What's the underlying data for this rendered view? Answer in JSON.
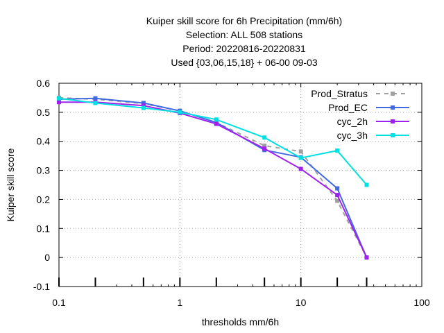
{
  "chart_data": {
    "type": "line",
    "title_lines": [
      "Kuiper skill score  for 6h Precipitation (mm/6h)",
      "Selection: ALL    508 stations",
      "Period: 20220816-20220831",
      "Used {03,06,15,18} + 06-00 09-03"
    ],
    "xlabel": "thresholds mm/6h",
    "ylabel": "Kuiper skill score",
    "x_scale": "log",
    "xlim": [
      0.1,
      100
    ],
    "ylim": [
      -0.1,
      0.6
    ],
    "x_ticks": [
      0.1,
      1,
      10,
      100
    ],
    "x_tick_labels": [
      "0.1",
      "1",
      "10",
      "100"
    ],
    "y_ticks": [
      -0.1,
      0,
      0.1,
      0.2,
      0.3,
      0.4,
      0.5,
      0.6
    ],
    "y_tick_labels": [
      "-0.1",
      "0",
      "0.1",
      "0.2",
      "0.3",
      "0.4",
      "0.5",
      "0.6"
    ],
    "grid": true,
    "legend_position": "top-right",
    "threshold_markers": [
      0.1,
      0.2,
      0.5,
      1,
      2,
      5,
      10,
      20,
      35
    ],
    "series": [
      {
        "name": "Prod_Stratus",
        "color": "#a0a0a0",
        "dashed": true,
        "x": [
          0.1,
          0.2,
          0.5,
          1,
          2,
          5,
          10,
          20,
          35
        ],
        "y": [
          0.55,
          0.545,
          0.53,
          0.505,
          0.465,
          0.385,
          0.365,
          0.195,
          0.0
        ]
      },
      {
        "name": "Prod_EC",
        "color": "#4169e1",
        "dashed": false,
        "x": [
          0.1,
          0.2,
          0.5,
          1,
          2,
          5,
          10,
          20,
          35
        ],
        "y": [
          0.545,
          0.548,
          0.532,
          0.505,
          0.465,
          0.37,
          0.345,
          0.238,
          0.0
        ]
      },
      {
        "name": "cyc_2h",
        "color": "#a020f0",
        "dashed": false,
        "x": [
          0.1,
          0.2,
          0.5,
          1,
          2,
          5,
          10,
          20,
          35
        ],
        "y": [
          0.535,
          0.535,
          0.523,
          0.497,
          0.46,
          0.375,
          0.305,
          0.215,
          0.0
        ]
      },
      {
        "name": "cyc_3h",
        "color": "#00e0e0",
        "dashed": false,
        "x": [
          0.1,
          0.2,
          0.5,
          1,
          2,
          5,
          10,
          20,
          35
        ],
        "y": [
          0.548,
          0.532,
          0.515,
          0.5,
          0.475,
          0.413,
          0.343,
          0.368,
          0.25
        ]
      }
    ]
  }
}
